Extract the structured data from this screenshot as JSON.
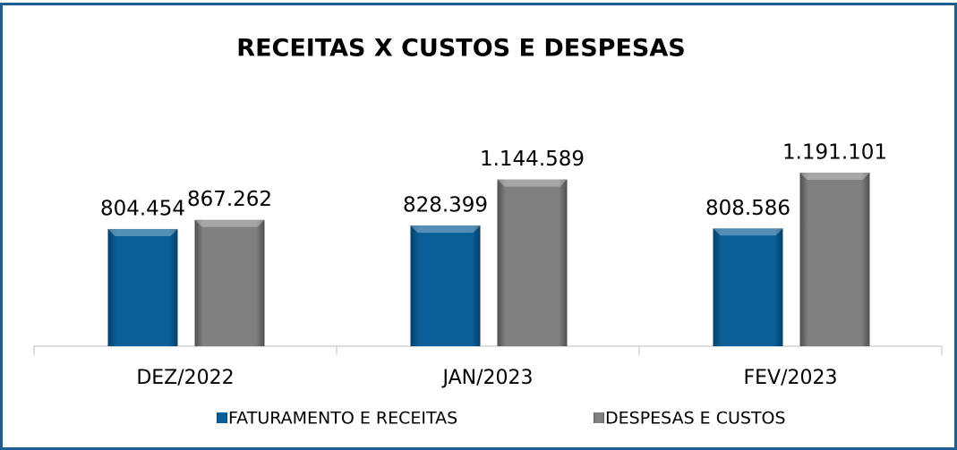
{
  "chart_data": {
    "type": "bar",
    "title": "RECEITAS X CUSTOS E DESPESAS",
    "categories": [
      "DEZ/2022",
      "JAN/2023",
      "FEV/2023"
    ],
    "series": [
      {
        "name": "FATURAMENTO E RECEITAS",
        "color": "#0a5f98",
        "values": [
          804454,
          828399,
          808586
        ],
        "value_labels": [
          "804.454",
          "828.399",
          "808.586"
        ]
      },
      {
        "name": "DESPESAS E CUSTOS",
        "color": "#7f7f7f",
        "values": [
          867262,
          1144589,
          1191101
        ],
        "value_labels": [
          "867.262",
          "1.144.589",
          "1.191.101"
        ]
      }
    ],
    "legend": "bottom"
  }
}
